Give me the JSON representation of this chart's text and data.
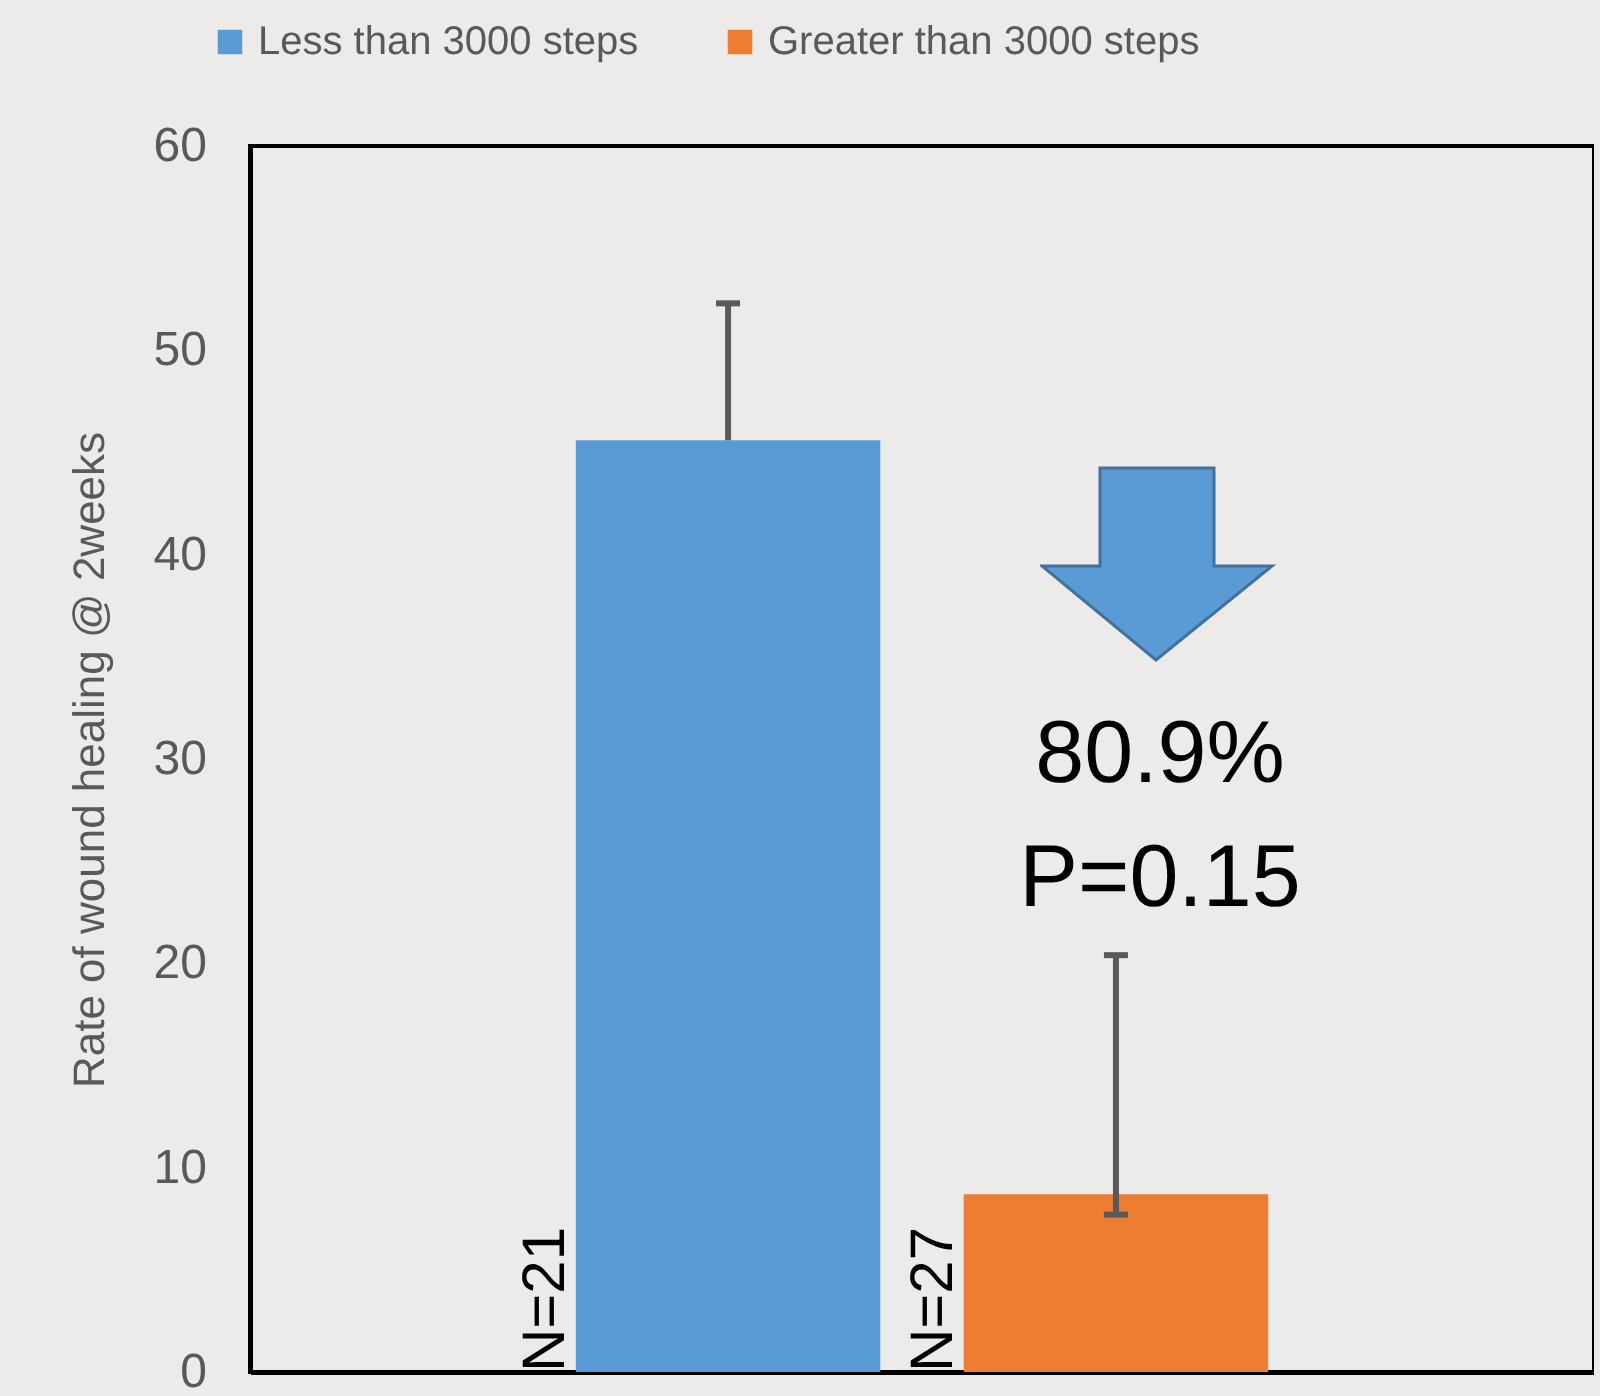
{
  "chart_data": {
    "type": "bar",
    "categories": [
      null,
      null
    ],
    "ylabel": "Rate of wound healing @ 2weeks",
    "ylim": [
      0,
      60
    ],
    "yticks": [
      0,
      10,
      20,
      30,
      40,
      50,
      60
    ],
    "grid": false,
    "legend": "top",
    "series": [
      {
        "name": "Less than 3000 steps",
        "color": "#5b9bd5",
        "values": [
          45.6,
          null
        ],
        "errors": [
          [
            45.6,
            52.3
          ],
          null
        ]
      },
      {
        "name": "Greater than 3000 steps",
        "color": "#ed7d31",
        "values": [
          null,
          8.7
        ],
        "errors": [
          null,
          [
            7.7,
            20.4
          ]
        ]
      }
    ],
    "annotations": [
      "80.9%",
      "P=0.15",
      "N=21",
      "N=27"
    ]
  }
}
